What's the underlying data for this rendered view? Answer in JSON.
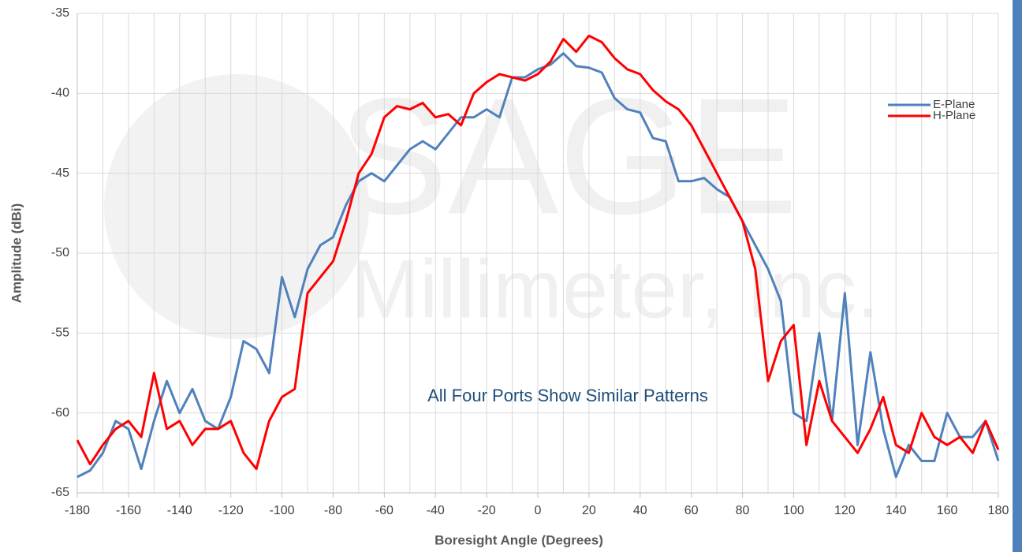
{
  "chart_data": {
    "type": "line",
    "xlabel": "Boresight Angle (Degrees)",
    "ylabel": "Amplitude (dBi)",
    "annotation": "All Four Ports Show Similar Patterns",
    "watermark": [
      "SAGE",
      "Millimeter, Inc."
    ],
    "x": [
      -180,
      -175,
      -170,
      -165,
      -160,
      -155,
      -150,
      -145,
      -140,
      -135,
      -130,
      -125,
      -120,
      -115,
      -110,
      -105,
      -100,
      -95,
      -90,
      -85,
      -80,
      -75,
      -70,
      -65,
      -60,
      -55,
      -50,
      -45,
      -40,
      -35,
      -30,
      -25,
      -20,
      -15,
      -10,
      -5,
      0,
      5,
      10,
      15,
      20,
      25,
      30,
      35,
      40,
      45,
      50,
      55,
      60,
      65,
      70,
      75,
      80,
      85,
      90,
      95,
      100,
      105,
      110,
      115,
      120,
      125,
      130,
      135,
      140,
      145,
      150,
      155,
      160,
      165,
      170,
      175,
      180
    ],
    "series": [
      {
        "name": "E-Plane",
        "color": "#4f81bd",
        "values": [
          -64,
          -63.6,
          -62.5,
          -60.5,
          -61,
          -63.5,
          -60.5,
          -58,
          -60,
          -58.5,
          -60.5,
          -61,
          -59,
          -55.5,
          -56,
          -57.5,
          -51.5,
          -54,
          -51,
          -49.5,
          -49,
          -47,
          -45.5,
          -45,
          -45.5,
          -44.5,
          -43.5,
          -43,
          -43.5,
          -42.5,
          -41.5,
          -41.5,
          -41,
          -41.5,
          -39,
          -39,
          -38.5,
          -38.2,
          -37.5,
          -38.3,
          -38.4,
          -38.7,
          -40.3,
          -41,
          -41.2,
          -42.8,
          -43,
          -45.5,
          -45.5,
          -45.3,
          -46,
          -46.5,
          -48,
          -49.5,
          -51,
          -53,
          -60,
          -60.5,
          -55,
          -60.5,
          -52.5,
          -62,
          -56.2,
          -61,
          -64,
          -62,
          -63,
          -63,
          -60,
          -61.5,
          -61.5,
          -60.5,
          -63
        ]
      },
      {
        "name": "H-Plane",
        "color": "#ff0000",
        "values": [
          -61.7,
          -63.2,
          -62,
          -61,
          -60.5,
          -61.5,
          -57.5,
          -61,
          -60.5,
          -62,
          -61,
          -61,
          -60.5,
          -62.5,
          -63.5,
          -60.5,
          -59,
          -58.5,
          -52.5,
          -51.5,
          -50.5,
          -48,
          -45,
          -43.8,
          -41.5,
          -40.8,
          -41,
          -40.6,
          -41.5,
          -41.3,
          -42,
          -40,
          -39.3,
          -38.8,
          -39,
          -39.2,
          -38.8,
          -38,
          -36.6,
          -37.4,
          -36.4,
          -36.8,
          -37.8,
          -38.5,
          -38.8,
          -39.8,
          -40.5,
          -41,
          -42,
          -43.5,
          -45,
          -46.5,
          -48,
          -51,
          -58,
          -55.5,
          -54.5,
          -62,
          -58,
          -60.5,
          -61.5,
          -62.5,
          -61,
          -59,
          -62,
          -62.5,
          -60,
          -61.5,
          -62,
          -61.5,
          -62.5,
          -60.5,
          -62.3
        ]
      }
    ],
    "xlim": [
      -180,
      180
    ],
    "xticks": [
      -180,
      -160,
      -140,
      -120,
      -100,
      -80,
      -60,
      -40,
      -20,
      0,
      20,
      40,
      60,
      80,
      100,
      120,
      140,
      160,
      180
    ],
    "xgrid": [
      -180,
      -170,
      -160,
      -150,
      -140,
      -130,
      -120,
      -110,
      -100,
      -90,
      -80,
      -70,
      -60,
      -50,
      -40,
      -30,
      -20,
      -10,
      0,
      10,
      20,
      30,
      40,
      50,
      60,
      70,
      80,
      90,
      100,
      110,
      120,
      130,
      140,
      150,
      160,
      170,
      180
    ],
    "ylim": [
      -65,
      -35
    ],
    "yticks": [
      -65,
      -60,
      -55,
      -50,
      -45,
      -40,
      -35
    ],
    "grid": true,
    "legend": "right"
  }
}
